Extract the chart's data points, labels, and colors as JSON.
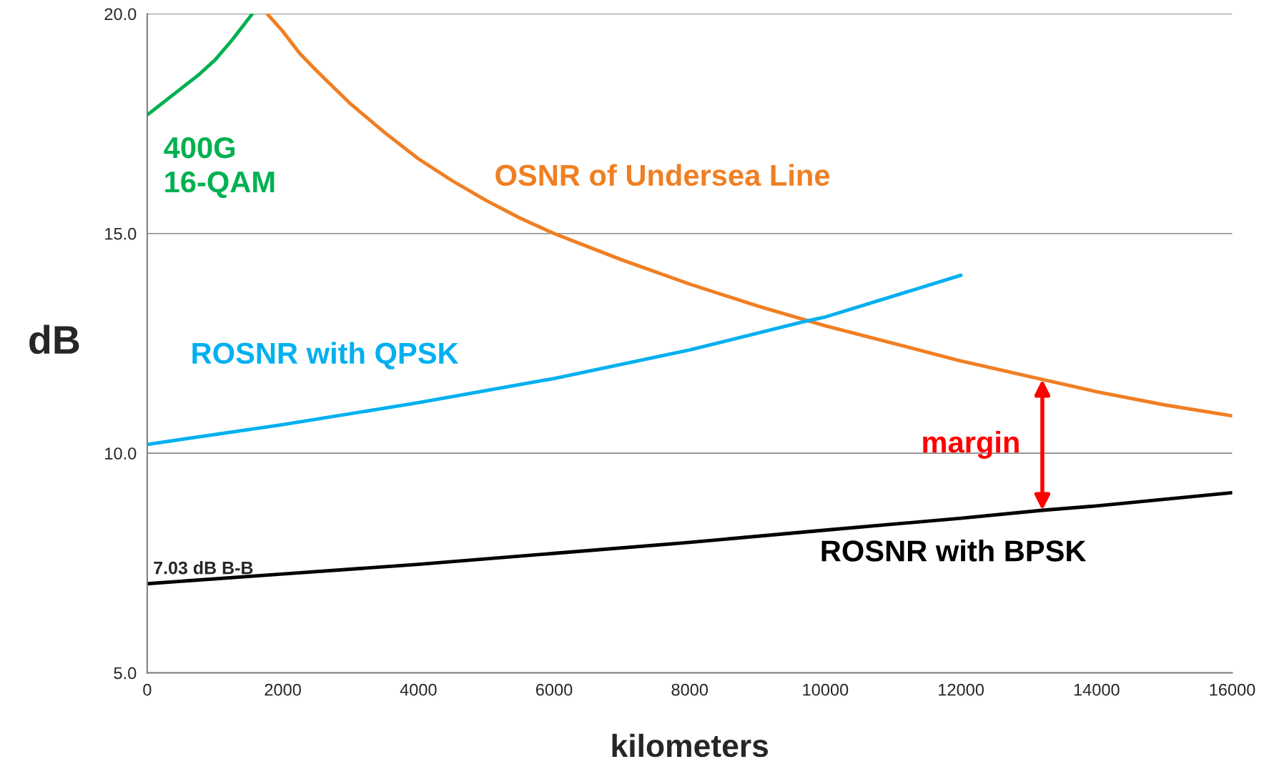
{
  "chart_data": {
    "type": "line",
    "xlabel": "kilometers",
    "ylabel": "dB",
    "xlim": [
      0,
      16000
    ],
    "xticks": [
      0,
      2000,
      4000,
      6000,
      8000,
      10000,
      12000,
      14000,
      16000
    ],
    "ylim": [
      5,
      20
    ],
    "yticks": [
      {
        "value": 5,
        "label": "5.0"
      },
      {
        "value": 10,
        "label": "10.0"
      },
      {
        "value": 15,
        "label": "15.0"
      },
      {
        "value": 20,
        "label": "20.0"
      }
    ],
    "grid": "y",
    "legend": false,
    "marker": "none",
    "line_style": "solid",
    "series": [
      {
        "name": "400G\n16-QAM",
        "color": "#00b050",
        "x": [
          0,
          250,
          500,
          750,
          1000,
          1250,
          1550
        ],
        "values": [
          17.7,
          18.0,
          18.3,
          18.6,
          18.95,
          19.4,
          20.0
        ]
      },
      {
        "name": "OSNR of Undersea Line",
        "color": "#f07f22",
        "x": [
          1770,
          2000,
          2250,
          2500,
          3000,
          3500,
          4000,
          4500,
          5000,
          5500,
          6000,
          7000,
          8000,
          9000,
          10000,
          11000,
          12000,
          13000,
          14000,
          15000,
          16000
        ],
        "values": [
          20.0,
          19.6,
          19.1,
          18.7,
          17.95,
          17.3,
          16.7,
          16.2,
          15.75,
          15.35,
          15.0,
          14.4,
          13.85,
          13.35,
          12.9,
          12.5,
          12.1,
          11.75,
          11.4,
          11.1,
          10.85
        ]
      },
      {
        "name": "ROSNR with QPSK",
        "color": "#00b0f0",
        "x": [
          0,
          2000,
          4000,
          6000,
          8000,
          9700,
          10000,
          12000
        ],
        "values": [
          10.2,
          10.65,
          11.15,
          11.7,
          12.35,
          13.0,
          13.1,
          14.05
        ]
      },
      {
        "name": "ROSNR with BPSK",
        "color": "#000000",
        "x": [
          0,
          2000,
          4000,
          6000,
          8000,
          10000,
          12000,
          13200,
          14000,
          16000
        ],
        "values": [
          7.03,
          7.25,
          7.47,
          7.72,
          7.97,
          8.25,
          8.52,
          8.7,
          8.8,
          9.1
        ]
      }
    ],
    "annotations": [
      {
        "text": "7.03 dB B-B",
        "x": 0,
        "y": 7.03
      },
      {
        "text": "margin",
        "x": 13200,
        "y": 8.7
      }
    ]
  }
}
